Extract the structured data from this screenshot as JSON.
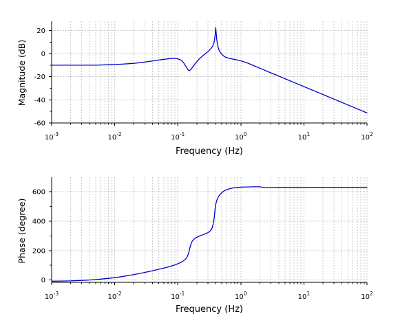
{
  "figure": {
    "background": "#ffffff",
    "curve_color": "#0000cc",
    "grid_color": "#c9c9c9",
    "axis_color": "#000000"
  },
  "chart_data": [
    {
      "id": "magnitude",
      "type": "line",
      "title": "",
      "xlabel": "Frequency (Hz)",
      "ylabel": "Magnitude (dB)",
      "x_scale": "log",
      "xlim": [
        0.001,
        100
      ],
      "ylim": [
        -60,
        28
      ],
      "x_major_tick_exponents": [
        -3,
        -2,
        -1,
        0,
        1,
        2
      ],
      "y_major_ticks": [
        20,
        0,
        -20,
        -40,
        -60
      ],
      "y_minor_ticks": [
        10,
        -10,
        -30,
        -50
      ],
      "grid": "dashed",
      "legend": null,
      "series": [
        {
          "name": "magnitude-response",
          "color": "#0000cc",
          "points": [
            [
              0.001,
              -10
            ],
            [
              0.002,
              -10
            ],
            [
              0.003,
              -10
            ],
            [
              0.004,
              -10
            ],
            [
              0.005,
              -10
            ],
            [
              0.006,
              -9.8
            ],
            [
              0.008,
              -9.6
            ],
            [
              0.01,
              -9.4
            ],
            [
              0.013,
              -9.1
            ],
            [
              0.017,
              -8.7
            ],
            [
              0.022,
              -8.2
            ],
            [
              0.028,
              -7.5
            ],
            [
              0.035,
              -6.8
            ],
            [
              0.045,
              -5.9
            ],
            [
              0.055,
              -5.2
            ],
            [
              0.065,
              -4.7
            ],
            [
              0.075,
              -4.3
            ],
            [
              0.085,
              -4.1
            ],
            [
              0.095,
              -4.2
            ],
            [
              0.105,
              -4.8
            ],
            [
              0.115,
              -6.0
            ],
            [
              0.125,
              -8.2
            ],
            [
              0.135,
              -11.2
            ],
            [
              0.145,
              -13.9
            ],
            [
              0.152,
              -14.8
            ],
            [
              0.16,
              -13.9
            ],
            [
              0.17,
              -12.0
            ],
            [
              0.185,
              -9.3
            ],
            [
              0.2,
              -7.0
            ],
            [
              0.22,
              -4.4
            ],
            [
              0.25,
              -1.7
            ],
            [
              0.28,
              0.4
            ],
            [
              0.31,
              2.4
            ],
            [
              0.34,
              4.8
            ],
            [
              0.36,
              6.8
            ],
            [
              0.375,
              9.5
            ],
            [
              0.385,
              13.0
            ],
            [
              0.395,
              18.5
            ],
            [
              0.4,
              22.5
            ],
            [
              0.405,
              19.0
            ],
            [
              0.415,
              12.5
            ],
            [
              0.43,
              7.0
            ],
            [
              0.45,
              3.2
            ],
            [
              0.48,
              0.6
            ],
            [
              0.52,
              -1.6
            ],
            [
              0.57,
              -3.0
            ],
            [
              0.63,
              -3.8
            ],
            [
              0.72,
              -4.5
            ],
            [
              0.85,
              -5.3
            ],
            [
              1.0,
              -6.2
            ],
            [
              1.3,
              -8.3
            ],
            [
              1.7,
              -11.0
            ],
            [
              2.2,
              -13.5
            ],
            [
              2.8,
              -16.0
            ],
            [
              3.6,
              -18.4
            ],
            [
              4.6,
              -20.9
            ],
            [
              6.0,
              -23.5
            ],
            [
              7.7,
              -25.9
            ],
            [
              10,
              -28.5
            ],
            [
              13,
              -31.1
            ],
            [
              17,
              -33.7
            ],
            [
              22,
              -36.3
            ],
            [
              28,
              -38.7
            ],
            [
              36,
              -41.2
            ],
            [
              47,
              -43.8
            ],
            [
              60,
              -46.2
            ],
            [
              78,
              -48.8
            ],
            [
              100,
              -51.3
            ]
          ]
        }
      ]
    },
    {
      "id": "phase",
      "type": "line",
      "title": "",
      "xlabel": "Frequency (Hz)",
      "ylabel": "Phase (degree)",
      "x_scale": "log",
      "xlim": [
        0.001,
        100
      ],
      "ylim": [
        -16,
        699
      ],
      "x_major_tick_exponents": [
        -3,
        -2,
        -1,
        0,
        1,
        2
      ],
      "y_major_ticks": [
        600,
        400,
        200,
        0
      ],
      "y_minor_ticks": [
        500,
        300,
        100
      ],
      "grid": "dashed",
      "legend": null,
      "series": [
        {
          "name": "phase-response",
          "color": "#0000cc",
          "points": [
            [
              0.001,
              -8
            ],
            [
              0.0015,
              -7
            ],
            [
              0.002,
              -6
            ],
            [
              0.003,
              -3
            ],
            [
              0.004,
              0
            ],
            [
              0.005,
              3
            ],
            [
              0.006,
              6
            ],
            [
              0.008,
              11
            ],
            [
              0.01,
              16
            ],
            [
              0.013,
              23
            ],
            [
              0.017,
              31
            ],
            [
              0.022,
              40
            ],
            [
              0.028,
              49
            ],
            [
              0.035,
              58
            ],
            [
              0.045,
              68
            ],
            [
              0.055,
              77
            ],
            [
              0.07,
              88
            ],
            [
              0.085,
              99
            ],
            [
              0.1,
              110
            ],
            [
              0.115,
              122
            ],
            [
              0.13,
              138
            ],
            [
              0.14,
              155
            ],
            [
              0.148,
              180
            ],
            [
              0.155,
              215
            ],
            [
              0.162,
              245
            ],
            [
              0.17,
              265
            ],
            [
              0.185,
              282
            ],
            [
              0.2,
              291
            ],
            [
              0.22,
              299
            ],
            [
              0.25,
              308
            ],
            [
              0.28,
              316
            ],
            [
              0.3,
              322
            ],
            [
              0.32,
              330
            ],
            [
              0.34,
              343
            ],
            [
              0.355,
              360
            ],
            [
              0.37,
              395
            ],
            [
              0.38,
              430
            ],
            [
              0.39,
              480
            ],
            [
              0.4,
              515
            ],
            [
              0.415,
              540
            ],
            [
              0.435,
              562
            ],
            [
              0.46,
              578
            ],
            [
              0.5,
              595
            ],
            [
              0.55,
              608
            ],
            [
              0.6,
              615
            ],
            [
              0.68,
              622
            ],
            [
              0.78,
              627
            ],
            [
              0.9,
              630
            ],
            [
              1.05,
              632
            ],
            [
              1.3,
              633
            ],
            [
              1.6,
              634
            ],
            [
              2.0,
              634
            ],
            [
              2.2,
              631
            ],
            [
              2.5,
              629
            ],
            [
              3,
              629
            ],
            [
              4,
              630
            ],
            [
              6,
              630
            ],
            [
              10,
              630
            ],
            [
              20,
              630
            ],
            [
              50,
              630
            ],
            [
              100,
              630
            ]
          ]
        }
      ]
    }
  ]
}
